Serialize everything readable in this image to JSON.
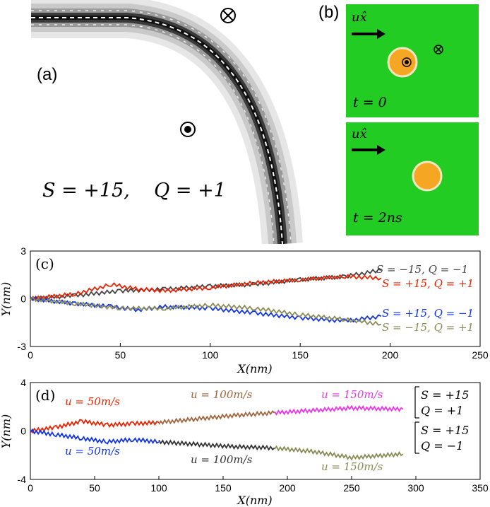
{
  "panel_a": {
    "label": "(a)",
    "formula": "S = +15,    Q = +1",
    "symbols": [
      "otimes-icon",
      "odot-icon"
    ]
  },
  "panel_b": {
    "label": "(b)",
    "top": {
      "arrow_label": "ux̂",
      "time": "t = 0"
    },
    "bottom": {
      "arrow_label": "ux̂",
      "time": "t = 2ns"
    },
    "colors": {
      "bg": "#22cc22",
      "skyrmion": "#f5a623",
      "ring": "#f5e6c0"
    }
  },
  "chart_data": [
    {
      "panel": "(c)",
      "type": "line",
      "xlabel": "X(nm)",
      "ylabel": "Y(nm)",
      "xlim": [
        0,
        250
      ],
      "ylim": [
        -3,
        3
      ],
      "xticks": [
        0,
        50,
        100,
        150,
        200,
        250
      ],
      "yticks": [
        -3,
        0,
        3
      ],
      "series": [
        {
          "name": "S = −15, Q = −1",
          "color": "#444444",
          "x": [
            0,
            25,
            50,
            75,
            100,
            125,
            150,
            175,
            195
          ],
          "y": [
            0,
            0.2,
            0.5,
            0.6,
            0.8,
            0.9,
            1.2,
            1.4,
            1.8
          ]
        },
        {
          "name": "S = +15, Q = +1",
          "color": "#ee2200",
          "x": [
            0,
            25,
            45,
            60,
            75,
            100,
            125,
            150,
            175,
            195
          ],
          "y": [
            0,
            0.3,
            0.9,
            0.6,
            0.5,
            0.7,
            1.0,
            1.2,
            1.4,
            1.3
          ]
        },
        {
          "name": "S = +15, Q = −1",
          "color": "#1133ee",
          "x": [
            0,
            25,
            45,
            60,
            75,
            100,
            125,
            150,
            175,
            195
          ],
          "y": [
            0,
            -0.3,
            -0.5,
            -0.7,
            -0.5,
            -0.6,
            -0.9,
            -1.2,
            -1.4,
            -1.1
          ]
        },
        {
          "name": "S = −15, Q = +1",
          "color": "#8a8a55",
          "x": [
            0,
            25,
            50,
            75,
            100,
            125,
            150,
            175,
            195
          ],
          "y": [
            0,
            -0.3,
            -0.6,
            -0.6,
            -0.4,
            -0.6,
            -1.0,
            -1.3,
            -1.6
          ]
        }
      ]
    },
    {
      "panel": "(d)",
      "type": "line",
      "xlabel": "X(nm)",
      "ylabel": "Y(nm)",
      "xlim": [
        0,
        350
      ],
      "ylim": [
        -4,
        4
      ],
      "xticks": [
        0,
        50,
        100,
        150,
        200,
        250,
        300,
        350
      ],
      "yticks": [
        -4,
        0,
        4
      ],
      "legend_groups": [
        {
          "S": "S = +15",
          "Q": "Q = +1"
        },
        {
          "S": "S = +15",
          "Q": "Q = −1"
        }
      ],
      "annotations": [
        {
          "text": "u = 50m/s",
          "color": "#ee2200"
        },
        {
          "text": "u = 100m/s",
          "color": "#a0643c"
        },
        {
          "text": "u = 150m/s",
          "color": "#ee33ee"
        },
        {
          "text": "u = 50m/s",
          "color": "#1133ee"
        },
        {
          "text": "u = 100m/s",
          "color": "#333333"
        },
        {
          "text": "u = 150m/s",
          "color": "#8a8a55"
        }
      ],
      "series": [
        {
          "name": "u = 50m/s",
          "color": "#ee2200",
          "x": [
            0,
            20,
            40,
            60,
            80,
            100
          ],
          "y": [
            0,
            0.3,
            0.8,
            0.5,
            0.6,
            0.7
          ]
        },
        {
          "name": "u = 100m/s",
          "color": "#a0643c",
          "x": [
            100,
            130,
            160,
            190
          ],
          "y": [
            0.7,
            1.0,
            1.3,
            1.5
          ]
        },
        {
          "name": "u = 150m/s",
          "color": "#ee33ee",
          "x": [
            190,
            220,
            250,
            290
          ],
          "y": [
            1.5,
            1.7,
            1.9,
            1.8
          ]
        },
        {
          "name": "u = 50m/s",
          "color": "#1133ee",
          "x": [
            0,
            20,
            40,
            60,
            80,
            100
          ],
          "y": [
            0,
            -0.3,
            -0.6,
            -0.9,
            -0.7,
            -0.9
          ]
        },
        {
          "name": "u = 100m/s",
          "color": "#333333",
          "x": [
            100,
            130,
            160,
            190
          ],
          "y": [
            -0.9,
            -1.1,
            -1.3,
            -1.4
          ]
        },
        {
          "name": "u = 150m/s",
          "color": "#8a8a55",
          "x": [
            190,
            220,
            250,
            290
          ],
          "y": [
            -1.4,
            -1.7,
            -2.2,
            -1.9
          ]
        }
      ]
    }
  ]
}
